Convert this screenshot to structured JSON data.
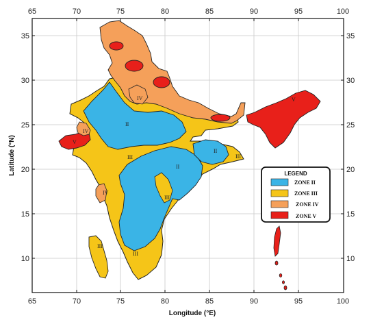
{
  "colors": {
    "zone_ii": "#3ab4e6",
    "zone_iii": "#f5c518",
    "zone_iv": "#f5a05a",
    "zone_v": "#e8201a",
    "border": "#222222",
    "grid": "#c8c8c8"
  },
  "axes": {
    "longitude_ticks": [
      "65",
      "70",
      "75",
      "80",
      "85",
      "90",
      "95",
      "100"
    ],
    "latitude_ticks": [
      "35",
      "30",
      "25",
      "20",
      "15",
      "10"
    ],
    "xlabel": "Longitude (°E)",
    "ylabel": "Latitude (°N)"
  },
  "zone_labels": [
    {
      "name": "zone-label-ii-central",
      "text": "II"
    },
    {
      "name": "zone-label-ii-east",
      "text": "II"
    },
    {
      "name": "zone-label-ii-deccan",
      "text": "II"
    },
    {
      "name": "zone-label-iii-central",
      "text": "III"
    },
    {
      "name": "zone-label-iii-deccan",
      "text": "III"
    },
    {
      "name": "zone-label-iii-south",
      "text": "III"
    },
    {
      "name": "zone-label-iii-lakshadweep",
      "text": "III"
    },
    {
      "name": "zone-label-iii-bengal",
      "text": "III"
    },
    {
      "name": "zone-label-iv-north",
      "text": "IV"
    },
    {
      "name": "zone-label-iv-gujarat",
      "text": "IV"
    },
    {
      "name": "zone-label-iv-konkan",
      "text": "IV"
    },
    {
      "name": "zone-label-v-kutch",
      "text": "V"
    },
    {
      "name": "zone-label-v-northeast",
      "text": "V"
    }
  ],
  "legend": {
    "title": "LEGEND",
    "items": [
      {
        "label": "ZONE II",
        "color": "#3ab4e6"
      },
      {
        "label": "ZONE III",
        "color": "#f5c518"
      },
      {
        "label": "ZONE IV",
        "color": "#f5a05a"
      },
      {
        "label": "ZONE V",
        "color": "#e8201a"
      }
    ]
  }
}
